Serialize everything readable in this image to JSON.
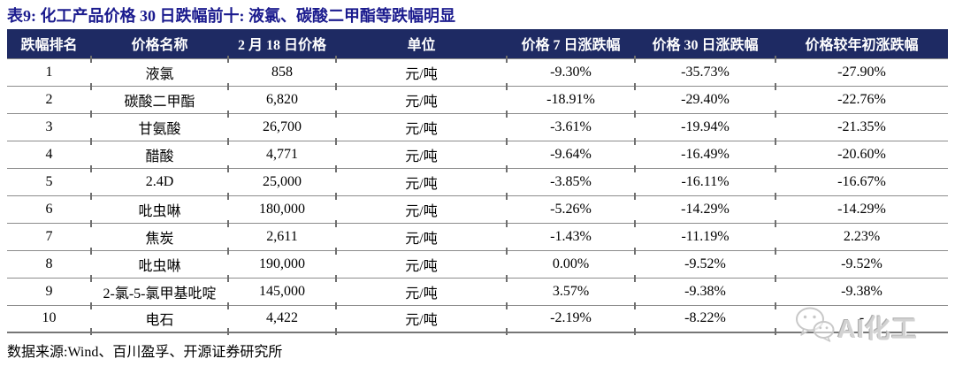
{
  "title": "表9: 化工产品价格 30 日跌幅前十: 液氯、碳酸二甲酯等跌幅明显",
  "table": {
    "columns": [
      "跌幅排名",
      "价格名称",
      "2 月 18 日价格",
      "单位",
      "价格 7 日涨跌幅",
      "价格 30 日涨跌幅",
      "价格较年初涨跌幅"
    ],
    "rows": [
      [
        "1",
        "液氯",
        "858",
        "元/吨",
        "-9.30%",
        "-35.73%",
        "-27.90%"
      ],
      [
        "2",
        "碳酸二甲酯",
        "6,820",
        "元/吨",
        "-18.91%",
        "-29.40%",
        "-22.76%"
      ],
      [
        "3",
        "甘氨酸",
        "26,700",
        "元/吨",
        "-3.61%",
        "-19.94%",
        "-21.35%"
      ],
      [
        "4",
        "醋酸",
        "4,771",
        "元/吨",
        "-9.64%",
        "-16.49%",
        "-20.60%"
      ],
      [
        "5",
        "2.4D",
        "25,000",
        "元/吨",
        "-3.85%",
        "-16.11%",
        "-16.67%"
      ],
      [
        "6",
        "吡虫啉",
        "180,000",
        "元/吨",
        "-5.26%",
        "-14.29%",
        "-14.29%"
      ],
      [
        "7",
        "焦炭",
        "2,611",
        "元/吨",
        "-1.43%",
        "-11.19%",
        "2.23%"
      ],
      [
        "8",
        "吡虫啉",
        "190,000",
        "元/吨",
        "0.00%",
        "-9.52%",
        "-9.52%"
      ],
      [
        "9",
        "2-氯-5-氯甲基吡啶",
        "145,000",
        "元/吨",
        "3.57%",
        "-9.38%",
        "-9.38%"
      ],
      [
        "10",
        "电石",
        "4,422",
        "元/吨",
        "-2.19%",
        "-8.22%",
        "-"
      ]
    ]
  },
  "source": "数据来源:Wind、百川盈孚、开源证券研究所",
  "watermark": {
    "text": "AI化工"
  },
  "colors": {
    "title": "#1b1b8e",
    "header_bg": "#1e2a63",
    "header_text": "#ffffff",
    "body_text": "#000000",
    "grid_line": "#8c8c8c",
    "watermark": "#d2d2d2"
  }
}
